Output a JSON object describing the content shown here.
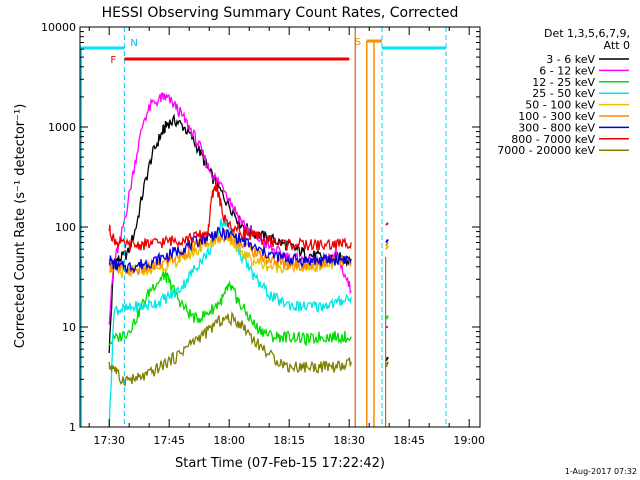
{
  "chart_data": {
    "type": "line",
    "title": "HESSI Observing Summary Count Rates, Corrected",
    "ylabel": "Corrected Count Rate (s⁻¹ detector⁻¹)",
    "xlabel": "Start Time (07-Feb-15 17:22:42)",
    "y_scale": "log",
    "ylim": [
      1,
      10000
    ],
    "xlim": [
      "17:22:42",
      "19:02:42"
    ],
    "y_ticks": [
      "1",
      "10",
      "100",
      "1000",
      "10000"
    ],
    "x_ticks": [
      "17:30",
      "17:45",
      "18:00",
      "18:15",
      "18:30",
      "18:45",
      "19:00"
    ],
    "legend_title": [
      "Det 1,3,5,6,7,9,",
      "Att 0"
    ],
    "legend_position": "right",
    "timestamp": "1-Aug-2017 07:32",
    "annotations": {
      "night_label": "N",
      "flare_label": "F",
      "saa_label": "S"
    },
    "series": [
      {
        "name": "3 - 6 keV",
        "color": "#000000",
        "x": [
          7.3,
          8.5,
          10,
          12,
          14,
          16,
          18,
          20,
          21,
          22,
          24,
          26,
          28,
          30,
          32,
          34,
          36,
          38,
          40,
          42,
          44,
          46,
          48,
          50,
          52,
          54,
          56,
          58,
          60,
          62,
          64,
          66,
          67.8
        ],
        "y": [
          6,
          45,
          48,
          55,
          100,
          250,
          520,
          800,
          950,
          1100,
          1150,
          1000,
          780,
          560,
          380,
          270,
          200,
          150,
          110,
          95,
          85,
          80,
          75,
          70,
          65,
          60,
          55,
          52,
          50,
          48,
          50,
          48,
          46
        ]
      },
      {
        "name": "6 - 12 keV",
        "color": "#ff00ff",
        "x": [
          7.3,
          8.5,
          10,
          12,
          14,
          16,
          18,
          20,
          21,
          22,
          24,
          26,
          28,
          30,
          32,
          34,
          36,
          38,
          40,
          42,
          44,
          46,
          48,
          50,
          52,
          54,
          56,
          58,
          60,
          62,
          64,
          66,
          67.8
        ],
        "y": [
          12,
          45,
          70,
          180,
          500,
          1200,
          1700,
          1900,
          2000,
          1900,
          1600,
          1200,
          900,
          620,
          400,
          300,
          250,
          170,
          120,
          95,
          80,
          70,
          60,
          55,
          50,
          48,
          45,
          44,
          44,
          46,
          55,
          35,
          23
        ]
      },
      {
        "name": "12 - 25 keV",
        "color": "#00dd00",
        "x": [
          7.3,
          10,
          12,
          14,
          16,
          18,
          20,
          21,
          22,
          23,
          25,
          27,
          29,
          31,
          33,
          35,
          36,
          37,
          38,
          39,
          40,
          42,
          44,
          46,
          48,
          50,
          52,
          54,
          56,
          58,
          60,
          62,
          64,
          66,
          67.8
        ],
        "y": [
          7,
          8,
          9,
          12,
          18,
          25,
          30,
          33,
          30,
          25,
          18,
          14,
          12,
          13,
          15,
          18,
          20,
          25,
          24,
          20,
          17,
          13,
          10,
          9,
          8,
          8,
          8,
          8,
          7.5,
          7.5,
          8,
          8,
          8,
          8,
          8
        ]
      },
      {
        "name": "25 - 50 keV",
        "color": "#00e5e5",
        "x": [
          7.3,
          8.5,
          10,
          12,
          14,
          16,
          18,
          20,
          22,
          24,
          26,
          28,
          30,
          32,
          34,
          35,
          36,
          37,
          38,
          39,
          40,
          42,
          44,
          46,
          48,
          50,
          52,
          54,
          56,
          58,
          60,
          62,
          64,
          66,
          67.8
        ],
        "y": [
          1,
          15,
          15,
          15,
          16,
          16,
          17,
          18,
          20,
          22,
          27,
          35,
          45,
          55,
          75,
          100,
          120,
          100,
          85,
          70,
          55,
          40,
          30,
          24,
          20,
          18,
          17,
          16,
          16,
          16,
          16,
          17,
          17,
          19,
          20
        ]
      },
      {
        "name": "50 - 100 keV",
        "color": "#e6c000",
        "x": [
          7.3,
          8.5,
          10,
          12,
          14,
          16,
          18,
          20,
          22,
          24,
          26,
          28,
          30,
          32,
          34,
          36,
          37,
          38,
          39,
          40,
          42,
          44,
          46,
          48,
          50,
          52,
          54,
          56,
          58,
          60,
          62,
          64,
          66,
          67.8
        ],
        "y": [
          40,
          38,
          35,
          35,
          36,
          37,
          38,
          40,
          42,
          45,
          50,
          55,
          60,
          68,
          75,
          80,
          78,
          72,
          65,
          58,
          50,
          45,
          42,
          40,
          40,
          40,
          40,
          40,
          40,
          41,
          42,
          43,
          45,
          45
        ]
      },
      {
        "name": "100 - 300 keV",
        "color": "#ff8c00",
        "x": [
          7.3,
          8.5,
          10,
          12,
          14,
          16,
          18,
          20,
          22,
          24,
          26,
          28,
          30,
          32,
          34,
          36,
          38,
          40,
          42,
          44,
          46,
          48,
          50,
          52,
          54,
          56,
          58,
          60,
          62,
          64,
          66,
          67.8
        ],
        "y": [
          42,
          40,
          38,
          37,
          37,
          38,
          40,
          42,
          46,
          50,
          55,
          62,
          68,
          75,
          82,
          84,
          80,
          72,
          62,
          55,
          50,
          46,
          44,
          42,
          42,
          42,
          43,
          44,
          45,
          45,
          46,
          44
        ]
      },
      {
        "name": "300 - 800 keV",
        "color": "#0000dd",
        "x": [
          7.3,
          8.5,
          10,
          12,
          14,
          16,
          18,
          20,
          22,
          24,
          26,
          28,
          30,
          32,
          34,
          36,
          38,
          40,
          42,
          44,
          46,
          48,
          50,
          52,
          54,
          56,
          58,
          60,
          62,
          64,
          66,
          67.8
        ],
        "y": [
          48,
          42,
          40,
          40,
          41,
          43,
          45,
          48,
          52,
          57,
          62,
          68,
          74,
          80,
          86,
          86,
          82,
          76,
          68,
          60,
          56,
          52,
          50,
          48,
          47,
          46,
          46,
          46,
          47,
          47,
          48,
          48
        ]
      },
      {
        "name": "800 - 7000 keV",
        "color": "#ee0000",
        "x": [
          7.3,
          8.5,
          10,
          12,
          14,
          16,
          18,
          20,
          22,
          24,
          26,
          28,
          30,
          32,
          33,
          34,
          35,
          36,
          38,
          40,
          42,
          44,
          46,
          48,
          50,
          52,
          54,
          56,
          58,
          60,
          62,
          64,
          66,
          67.8
        ],
        "y": [
          95,
          75,
          68,
          65,
          66,
          67,
          68,
          70,
          72,
          74,
          76,
          78,
          82,
          90,
          200,
          270,
          180,
          120,
          100,
          90,
          85,
          80,
          75,
          72,
          70,
          68,
          67,
          66,
          66,
          66,
          66,
          67,
          68,
          70
        ]
      },
      {
        "name": "7000 - 20000 keV",
        "color": "#808000",
        "x": [
          7.3,
          8.5,
          10,
          12,
          14,
          16,
          18,
          20,
          22,
          24,
          26,
          28,
          30,
          32,
          34,
          36,
          38,
          40,
          42,
          44,
          46,
          48,
          50,
          52,
          54,
          56,
          58,
          60,
          62,
          64,
          66,
          67.8
        ],
        "y": [
          4,
          4,
          3,
          3,
          3,
          3.2,
          3.5,
          4,
          4.5,
          5,
          6,
          7,
          8,
          9,
          11,
          12,
          12,
          11,
          9,
          7,
          6,
          5,
          4.5,
          4,
          4,
          4,
          4,
          4,
          4,
          4,
          4,
          4.5
        ]
      }
    ],
    "post_saa_points": {
      "x": [
        76.5,
        77
      ],
      "values": [
        [
          4.6,
          5
        ],
        [
          10,
          10
        ],
        [
          12,
          13
        ],
        [
          60,
          65
        ],
        [
          60,
          65
        ],
        [
          65,
          70
        ],
        [
          70,
          75
        ],
        [
          105,
          110
        ],
        [
          4,
          4.5
        ]
      ]
    },
    "night_intervals": [
      [
        0,
        11.1
      ],
      [
        75.5,
        91.5
      ]
    ],
    "flare_interval": [
      11.1,
      67.3
    ],
    "saa_interval": [
      71.7,
      73.5
    ]
  }
}
